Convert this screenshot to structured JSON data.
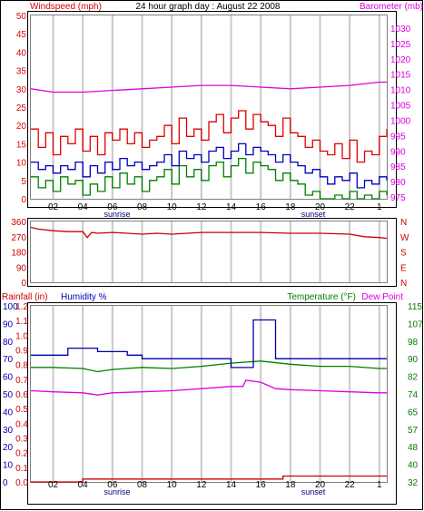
{
  "title": "24 hour graph day : August 22 2008",
  "x_ticks": [
    "02",
    "04",
    "06",
    "08",
    "10",
    "12",
    "14",
    "16",
    "18",
    "20",
    "22",
    "1"
  ],
  "sunrise_label": "sunrise",
  "sunset_label": "sunset",
  "colors": {
    "wind": "#e00000",
    "gust_avg": "#0000c0",
    "wind_low": "#008000",
    "barometer": "#e000e0",
    "direction": "#cc0000",
    "humidity": "#0000b0",
    "temperature": "#008000",
    "dewpoint": "#e000e0",
    "rainfall": "#cc0000"
  },
  "chart_data": [
    {
      "type": "line",
      "title": "24 hour graph day : August 22 2008",
      "left_axis": {
        "label": "Windspeed (mph)",
        "ticks": [
          "50",
          "45",
          "40",
          "35",
          "30",
          "25",
          "20",
          "15",
          "10",
          "5",
          "0"
        ],
        "range": [
          0,
          50
        ]
      },
      "right_axis": {
        "label": "Barometer (mb)",
        "ticks": [
          "1030",
          "1025",
          "1020",
          "1015",
          "1010",
          "1005",
          "1000",
          "995",
          "990",
          "985",
          "980",
          "975"
        ],
        "range": [
          975,
          1030
        ]
      },
      "x_range_hours": [
        0.5,
        24.5
      ],
      "series": [
        {
          "key": "wind_high",
          "axis": "left",
          "x": [
            0.5,
            1,
            1.5,
            2,
            2.5,
            3,
            3.5,
            4,
            4.5,
            5,
            5.5,
            6,
            6.5,
            7,
            7.5,
            8,
            8.5,
            9,
            9.5,
            10,
            10.5,
            11,
            11.5,
            12,
            12.5,
            13,
            13.5,
            14,
            14.5,
            15,
            15.5,
            16,
            16.5,
            17,
            17.5,
            18,
            18.5,
            19,
            19.5,
            20,
            20.5,
            21,
            21.5,
            22,
            22.5,
            23,
            23.5,
            24,
            24.5
          ],
          "y": [
            19,
            14,
            18,
            12,
            17,
            15,
            19,
            13,
            17,
            12,
            18,
            16,
            19,
            15,
            18,
            14,
            16,
            17,
            20,
            15,
            22,
            17,
            19,
            16,
            21,
            23,
            18,
            22,
            24,
            19,
            23,
            21,
            20,
            17,
            22,
            18,
            17,
            14,
            16,
            13,
            12,
            15,
            11,
            16,
            10,
            13,
            12,
            17,
            19
          ]
        },
        {
          "key": "wind_avg",
          "axis": "left",
          "x": [
            0.5,
            1,
            1.5,
            2,
            2.5,
            3,
            3.5,
            4,
            4.5,
            5,
            5.5,
            6,
            6.5,
            7,
            7.5,
            8,
            8.5,
            9,
            9.5,
            10,
            10.5,
            11,
            11.5,
            12,
            12.5,
            13,
            13.5,
            14,
            14.5,
            15,
            15.5,
            16,
            16.5,
            17,
            17.5,
            18,
            18.5,
            19,
            19.5,
            20,
            20.5,
            21,
            21.5,
            22,
            22.5,
            23,
            23.5,
            24,
            24.5
          ],
          "y": [
            10,
            8,
            9,
            7,
            9,
            8,
            10,
            6,
            9,
            7,
            10,
            8,
            11,
            9,
            10,
            8,
            9,
            10,
            12,
            9,
            13,
            11,
            12,
            10,
            13,
            14,
            11,
            13,
            15,
            12,
            14,
            13,
            12,
            10,
            12,
            10,
            9,
            7,
            8,
            6,
            4,
            6,
            5,
            7,
            3,
            5,
            4,
            6,
            5
          ]
        },
        {
          "key": "wind_low",
          "axis": "left",
          "x": [
            0.5,
            1,
            1.5,
            2,
            2.5,
            3,
            3.5,
            4,
            4.5,
            5,
            5.5,
            6,
            6.5,
            7,
            7.5,
            8,
            8.5,
            9,
            9.5,
            10,
            10.5,
            11,
            11.5,
            12,
            12.5,
            13,
            13.5,
            14,
            14.5,
            15,
            15.5,
            16,
            16.5,
            17,
            17.5,
            18,
            18.5,
            19,
            19.5,
            20,
            20.5,
            21,
            21.5,
            22,
            22.5,
            23,
            23.5,
            24,
            24.5
          ],
          "y": [
            6,
            3,
            5,
            2,
            6,
            4,
            5,
            1,
            4,
            2,
            6,
            3,
            7,
            4,
            6,
            2,
            5,
            6,
            8,
            4,
            9,
            6,
            8,
            5,
            9,
            10,
            6,
            9,
            11,
            7,
            10,
            9,
            8,
            5,
            7,
            5,
            4,
            1,
            2,
            0,
            0,
            1,
            0,
            2,
            0,
            1,
            0,
            2,
            1
          ]
        },
        {
          "key": "barometer",
          "axis": "right",
          "x": [
            0.5,
            2,
            4,
            6,
            8,
            10,
            12,
            14,
            16,
            18,
            20,
            22,
            24,
            24.5
          ],
          "y": [
            1008,
            1007,
            1007,
            1007.5,
            1008,
            1008.5,
            1009,
            1009,
            1008.5,
            1008,
            1008.5,
            1009,
            1010,
            1010
          ]
        }
      ]
    },
    {
      "type": "line",
      "left_axis": {
        "ticks": [
          "360",
          "270",
          "180",
          "90",
          "0"
        ],
        "range": [
          0,
          360
        ]
      },
      "right_axis": {
        "ticks": [
          "N",
          "W",
          "S",
          "E",
          "N"
        ]
      },
      "series": [
        {
          "key": "wind_direction",
          "axis": "left",
          "x": [
            0.5,
            1,
            2,
            3,
            4,
            4.3,
            4.6,
            5,
            6,
            7,
            8,
            9,
            10,
            12,
            14,
            16,
            18,
            20,
            22,
            23,
            24,
            24.5
          ],
          "y": [
            325,
            315,
            305,
            300,
            300,
            265,
            295,
            290,
            295,
            290,
            285,
            290,
            285,
            295,
            295,
            295,
            290,
            290,
            285,
            270,
            265,
            260
          ]
        }
      ]
    },
    {
      "type": "line",
      "left_axis_rain": {
        "label": "Rainfall (in)",
        "ticks": [
          "1.2",
          "1.1",
          "1.0",
          "0.9",
          "0.8",
          "0.7",
          "0.6",
          "0.5",
          "0.4",
          "0.3",
          "0.2",
          "0.1",
          "0.0"
        ],
        "range": [
          0,
          1.2
        ]
      },
      "left_axis_humidity": {
        "label": "Humidity %",
        "ticks": [
          "100",
          "90",
          "80",
          "70",
          "60",
          "50",
          "40",
          "30",
          "20",
          "10",
          "0"
        ],
        "range": [
          0,
          100
        ]
      },
      "right_axis": {
        "label": "Temperature (°F)",
        "ticks": [
          "115",
          "107",
          "98",
          "90",
          "82",
          "74",
          "65",
          "57",
          "48",
          "40",
          "32"
        ],
        "range": [
          32,
          115
        ]
      },
      "dewpoint_label": "Dew Point",
      "series": [
        {
          "key": "humidity",
          "axis": "humidity",
          "x": [
            0.5,
            3,
            3,
            5,
            5,
            7,
            7,
            8,
            8,
            14,
            14,
            15.5,
            15.5,
            17,
            17,
            24.5
          ],
          "y": [
            72,
            72,
            76,
            76,
            74,
            74,
            72,
            72,
            70,
            70,
            65,
            65,
            92,
            92,
            70,
            70
          ]
        },
        {
          "key": "temperature",
          "axis": "temp",
          "x": [
            0.5,
            2,
            4,
            5,
            6,
            8,
            10,
            12,
            14,
            16,
            18,
            20,
            22,
            24,
            24.5
          ],
          "y": [
            86,
            86,
            85.5,
            84,
            85,
            86,
            85.5,
            86.5,
            88,
            89,
            87.5,
            86.5,
            86.5,
            85.5,
            85.5
          ]
        },
        {
          "key": "dewpoint",
          "axis": "temp",
          "x": [
            0.5,
            2,
            4,
            5,
            6,
            8,
            10,
            12,
            14,
            14.8,
            15,
            16,
            17,
            18,
            20,
            22,
            24,
            24.5
          ],
          "y": [
            75,
            74.5,
            74,
            73,
            74,
            74.5,
            75,
            76,
            77,
            77,
            80,
            79,
            76,
            75.5,
            75,
            74.5,
            74,
            74
          ]
        },
        {
          "key": "rainfall",
          "axis": "rain",
          "x": [
            0.5,
            4,
            4,
            17.5,
            17.5,
            24.5
          ],
          "y": [
            0.0,
            0.0,
            0.02,
            0.02,
            0.04,
            0.04
          ]
        }
      ]
    }
  ]
}
